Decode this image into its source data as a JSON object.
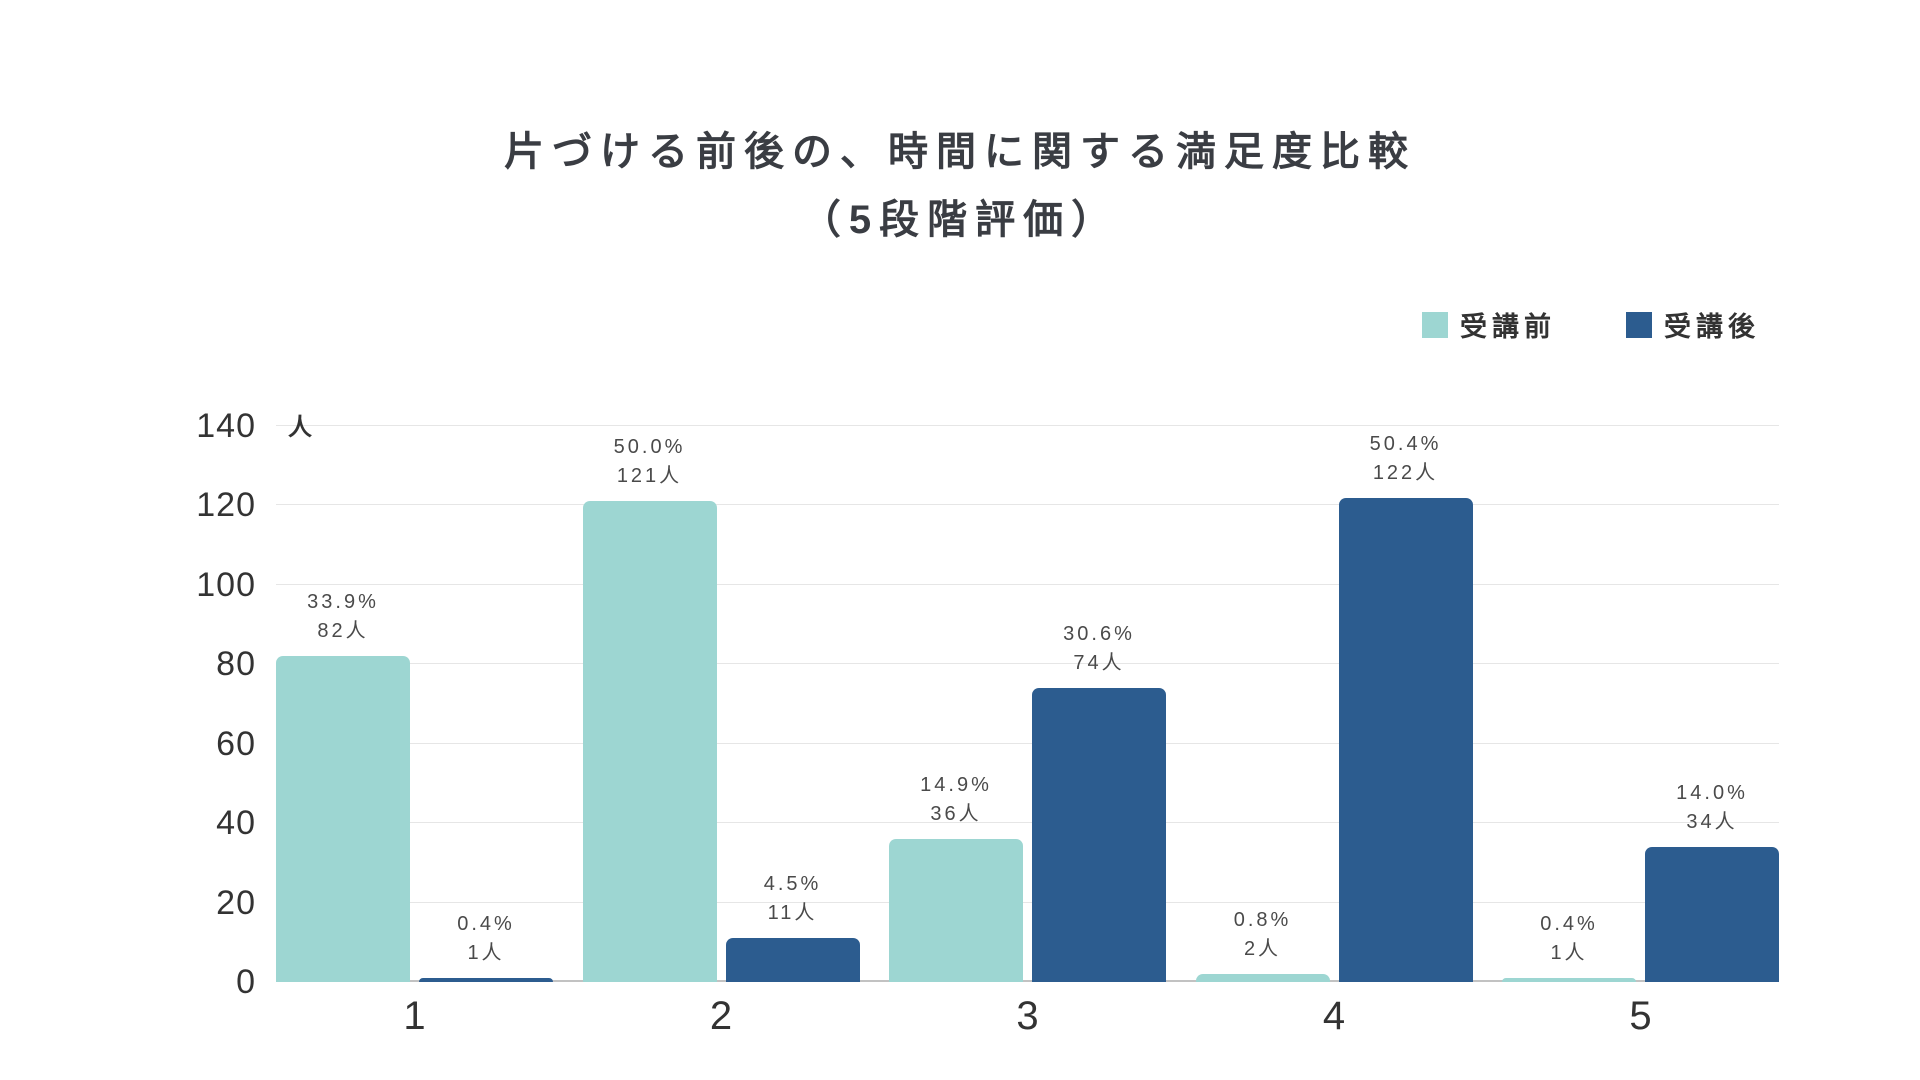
{
  "title": {
    "line1": "片づける前後の、時間に関する満足度比較",
    "line2": "（5段階評価）"
  },
  "legend": [
    {
      "label": "受講前",
      "color": "#9dd6d2"
    },
    {
      "label": "受講後",
      "color": "#2c5c8f"
    }
  ],
  "axis": {
    "unit_label": "人"
  },
  "chart_data": {
    "type": "bar",
    "title": "片づける前後の、時間に関する満足度比較（5段階評価）",
    "categories": [
      "1",
      "2",
      "3",
      "4",
      "5"
    ],
    "series": [
      {
        "name": "受講前",
        "color": "#9dd6d2",
        "values": [
          82,
          121,
          36,
          2,
          1
        ],
        "percent_labels": [
          "33.9%",
          "50.0%",
          "14.9%",
          "0.8%",
          "0.4%"
        ],
        "count_labels": [
          "82人",
          "121人",
          "36人",
          "2人",
          "1人"
        ]
      },
      {
        "name": "受講後",
        "color": "#2c5c8f",
        "values": [
          1,
          11,
          74,
          122,
          34
        ],
        "percent_labels": [
          "0.4%",
          "4.5%",
          "30.6%",
          "50.4%",
          "14.0%"
        ],
        "count_labels": [
          "1人",
          "11人",
          "74人",
          "122人",
          "34人"
        ]
      }
    ],
    "xlabel": "",
    "ylabel": "人",
    "ylim": [
      0,
      140
    ],
    "yticks": [
      0,
      20,
      40,
      60,
      80,
      100,
      120,
      140
    ],
    "grid": true,
    "legend_position": "top-right"
  }
}
